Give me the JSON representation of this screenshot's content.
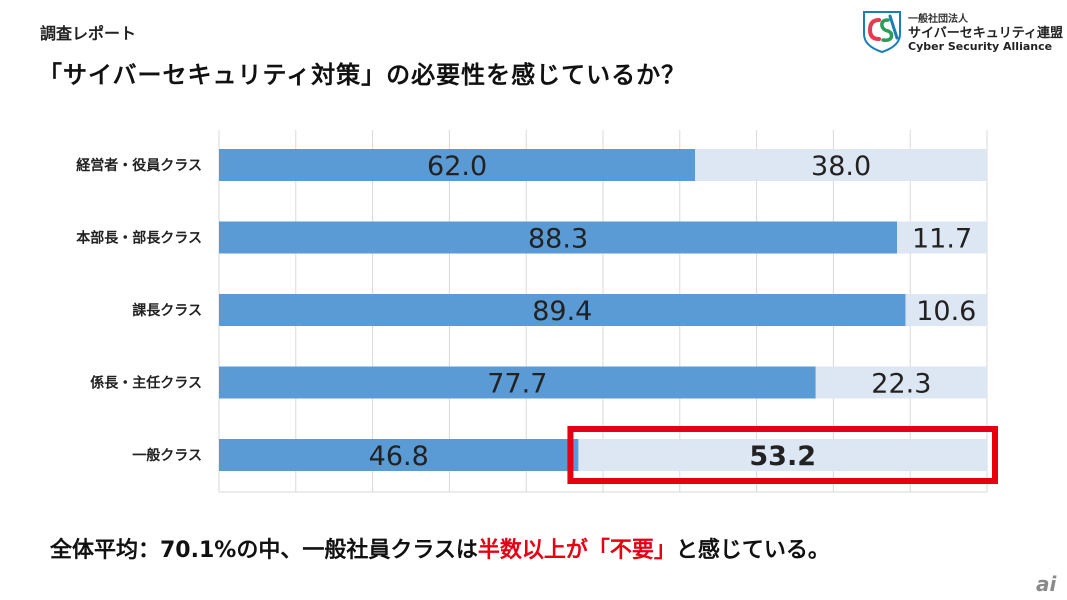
{
  "header": {
    "report_label": "調査レポート",
    "title": "「サイバーセキュリティ対策」の必要性を感じているか？"
  },
  "logo": {
    "icon_name": "csa-shield-logo",
    "line1": "一般社団法人",
    "line2": "サイバーセキュリティ連盟",
    "line3": "Cyber Security Alliance"
  },
  "chart_data": {
    "type": "bar",
    "orientation": "horizontal",
    "stacked": true,
    "categories": [
      "経営者・役員クラス",
      "本部長・部長クラス",
      "課長クラス",
      "係長・主任クラス",
      "一般クラス"
    ],
    "series": [
      {
        "values": [
          62.0,
          88.3,
          89.4,
          77.7,
          46.8
        ],
        "color": "#5b9bd5"
      },
      {
        "values": [
          38.0,
          11.7,
          10.6,
          22.3,
          53.2
        ],
        "color": "#dde7f3"
      }
    ],
    "value_labels": [
      [
        "62.0",
        "88.3",
        "89.4",
        "77.7",
        "46.8"
      ],
      [
        "38.0",
        "11.7",
        "10.6",
        "22.3",
        "53.2"
      ]
    ],
    "xlim": [
      0,
      100
    ],
    "grid": true,
    "highlight": {
      "category_index": 4,
      "series_index": 1,
      "color": "#e60012"
    }
  },
  "footer": {
    "prefix": "全体平均：70.1%の中、一般社員クラスは",
    "highlight": "半数以上が「不要」",
    "suffix": "と感じている。"
  },
  "watermark": {
    "text": "ai"
  }
}
